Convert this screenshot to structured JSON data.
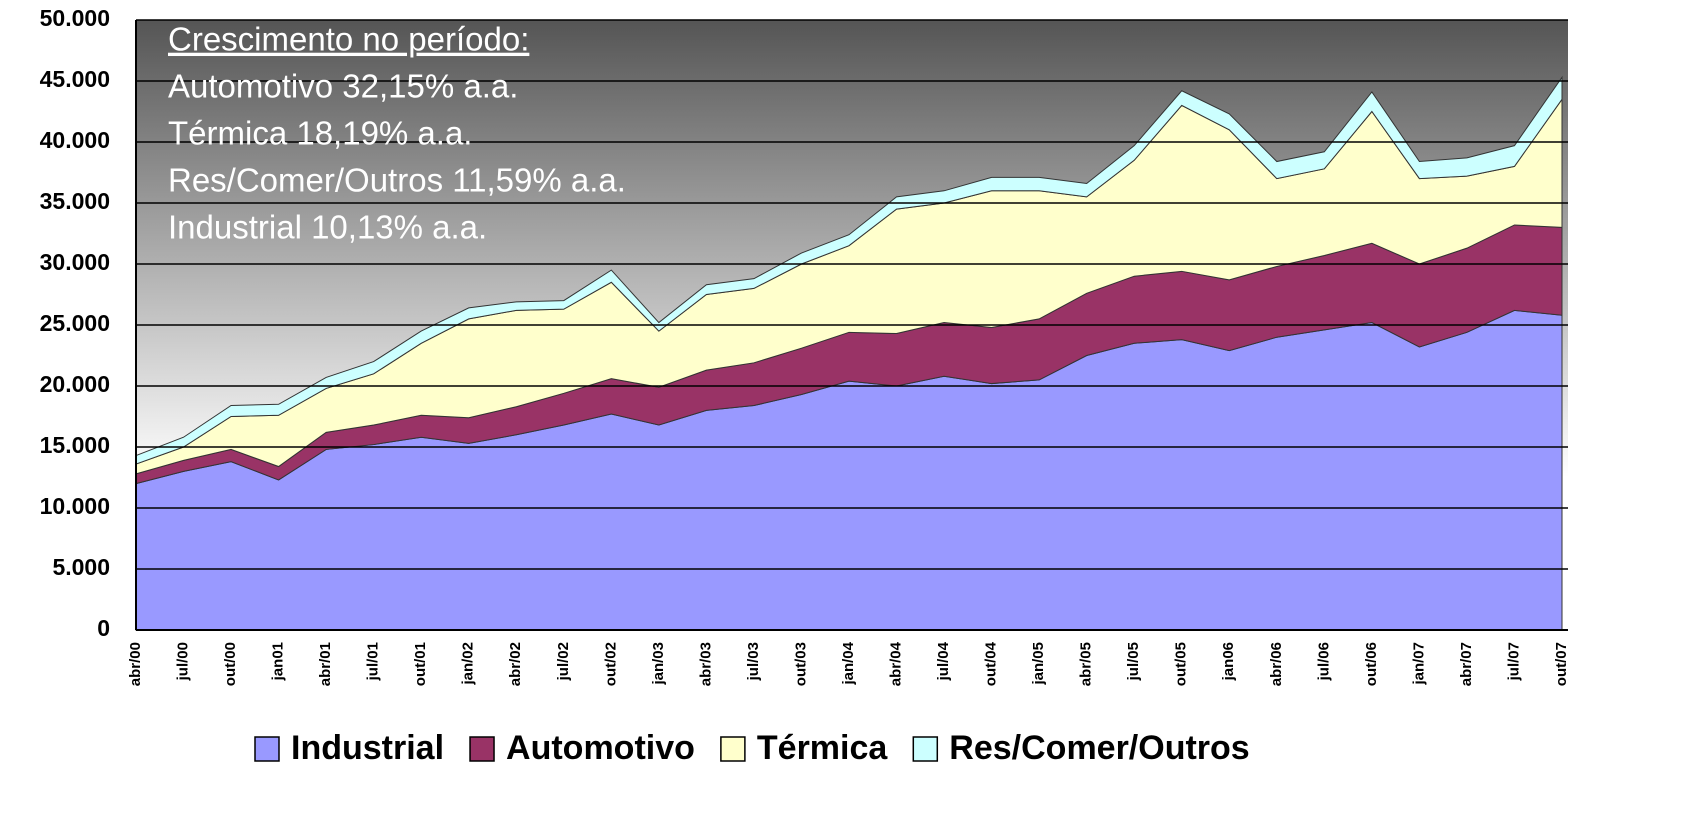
{
  "chart_data": {
    "type": "area",
    "stacked": true,
    "categories": [
      "abr/00",
      "jul/00",
      "out/00",
      "jan01",
      "abr/01",
      "jul/01",
      "out/01",
      "jan/02",
      "abr/02",
      "jul/02",
      "out/02",
      "jan/03",
      "abr/03",
      "jul/03",
      "out/03",
      "jan/04",
      "abr/04",
      "jul/04",
      "out/04",
      "jan/05",
      "abr/05",
      "jul/05",
      "out/05",
      "jan06",
      "abr/06",
      "jul/06",
      "out/06",
      "jan/07",
      "abr/07",
      "jul/07",
      "out/07"
    ],
    "series": [
      {
        "name": "Industrial",
        "color": "#9999ff",
        "values": [
          12000,
          13000,
          13800,
          12300,
          14800,
          15200,
          15800,
          15300,
          16000,
          16800,
          17700,
          16800,
          18000,
          18400,
          19300,
          20400,
          20000,
          20800,
          20200,
          20500,
          22500,
          23500,
          23800,
          22900,
          24000,
          24600,
          25200,
          23200,
          24400,
          26200,
          25800
        ]
      },
      {
        "name": "Automotivo",
        "color": "#993366",
        "values": [
          800,
          900,
          1000,
          1100,
          1400,
          1600,
          1800,
          2100,
          2300,
          2600,
          2900,
          3100,
          3300,
          3500,
          3800,
          4000,
          4300,
          4400,
          4600,
          5000,
          5100,
          5500,
          5600,
          5800,
          5800,
          6100,
          6500,
          6800,
          6900,
          7000,
          7200
        ]
      },
      {
        "name": "Térmica",
        "color": "#ffffcc",
        "values": [
          800,
          1100,
          2700,
          4200,
          3600,
          4200,
          5900,
          8100,
          7900,
          6900,
          7900,
          4600,
          6200,
          6100,
          6900,
          7100,
          10200,
          9800,
          11200,
          10500,
          7900,
          9500,
          13600,
          12300,
          7200,
          7100,
          10800,
          7000,
          5900,
          4800,
          10500
        ]
      },
      {
        "name": "Res/Comer/Outros",
        "color": "#ccffff",
        "values": [
          700,
          800,
          900,
          900,
          900,
          1000,
          1000,
          900,
          700,
          700,
          1000,
          700,
          800,
          800,
          900,
          900,
          1000,
          1000,
          1100,
          1100,
          1100,
          1200,
          1200,
          1300,
          1400,
          1400,
          1600,
          1400,
          1500,
          1700,
          1800
        ]
      }
    ],
    "ylim": [
      0,
      50000
    ],
    "yticks": [
      0,
      {
        "value": 5000,
        "label": "5.000"
      },
      {
        "value": 10000,
        "label": "10.000"
      },
      {
        "value": 15000,
        "label": "15.000"
      },
      {
        "value": 20000,
        "label": "20.000"
      },
      {
        "value": 25000,
        "label": "25.000"
      },
      {
        "value": 30000,
        "label": "30.000"
      },
      {
        "value": 35000,
        "label": "35.000"
      },
      {
        "value": 40000,
        "label": "40.000"
      },
      {
        "value": 45000,
        "label": "45.000"
      },
      {
        "value": 50000,
        "label": "50.000"
      }
    ],
    "grid": true,
    "legend": "bottom",
    "annotations": [
      "Crescimento no período:",
      "Automotivo 32,15% a.a.",
      "Térmica 18,19% a.a.",
      "Res/Comer/Outros 11,59% a.a.",
      "Industrial 10,13% a.a."
    ]
  }
}
